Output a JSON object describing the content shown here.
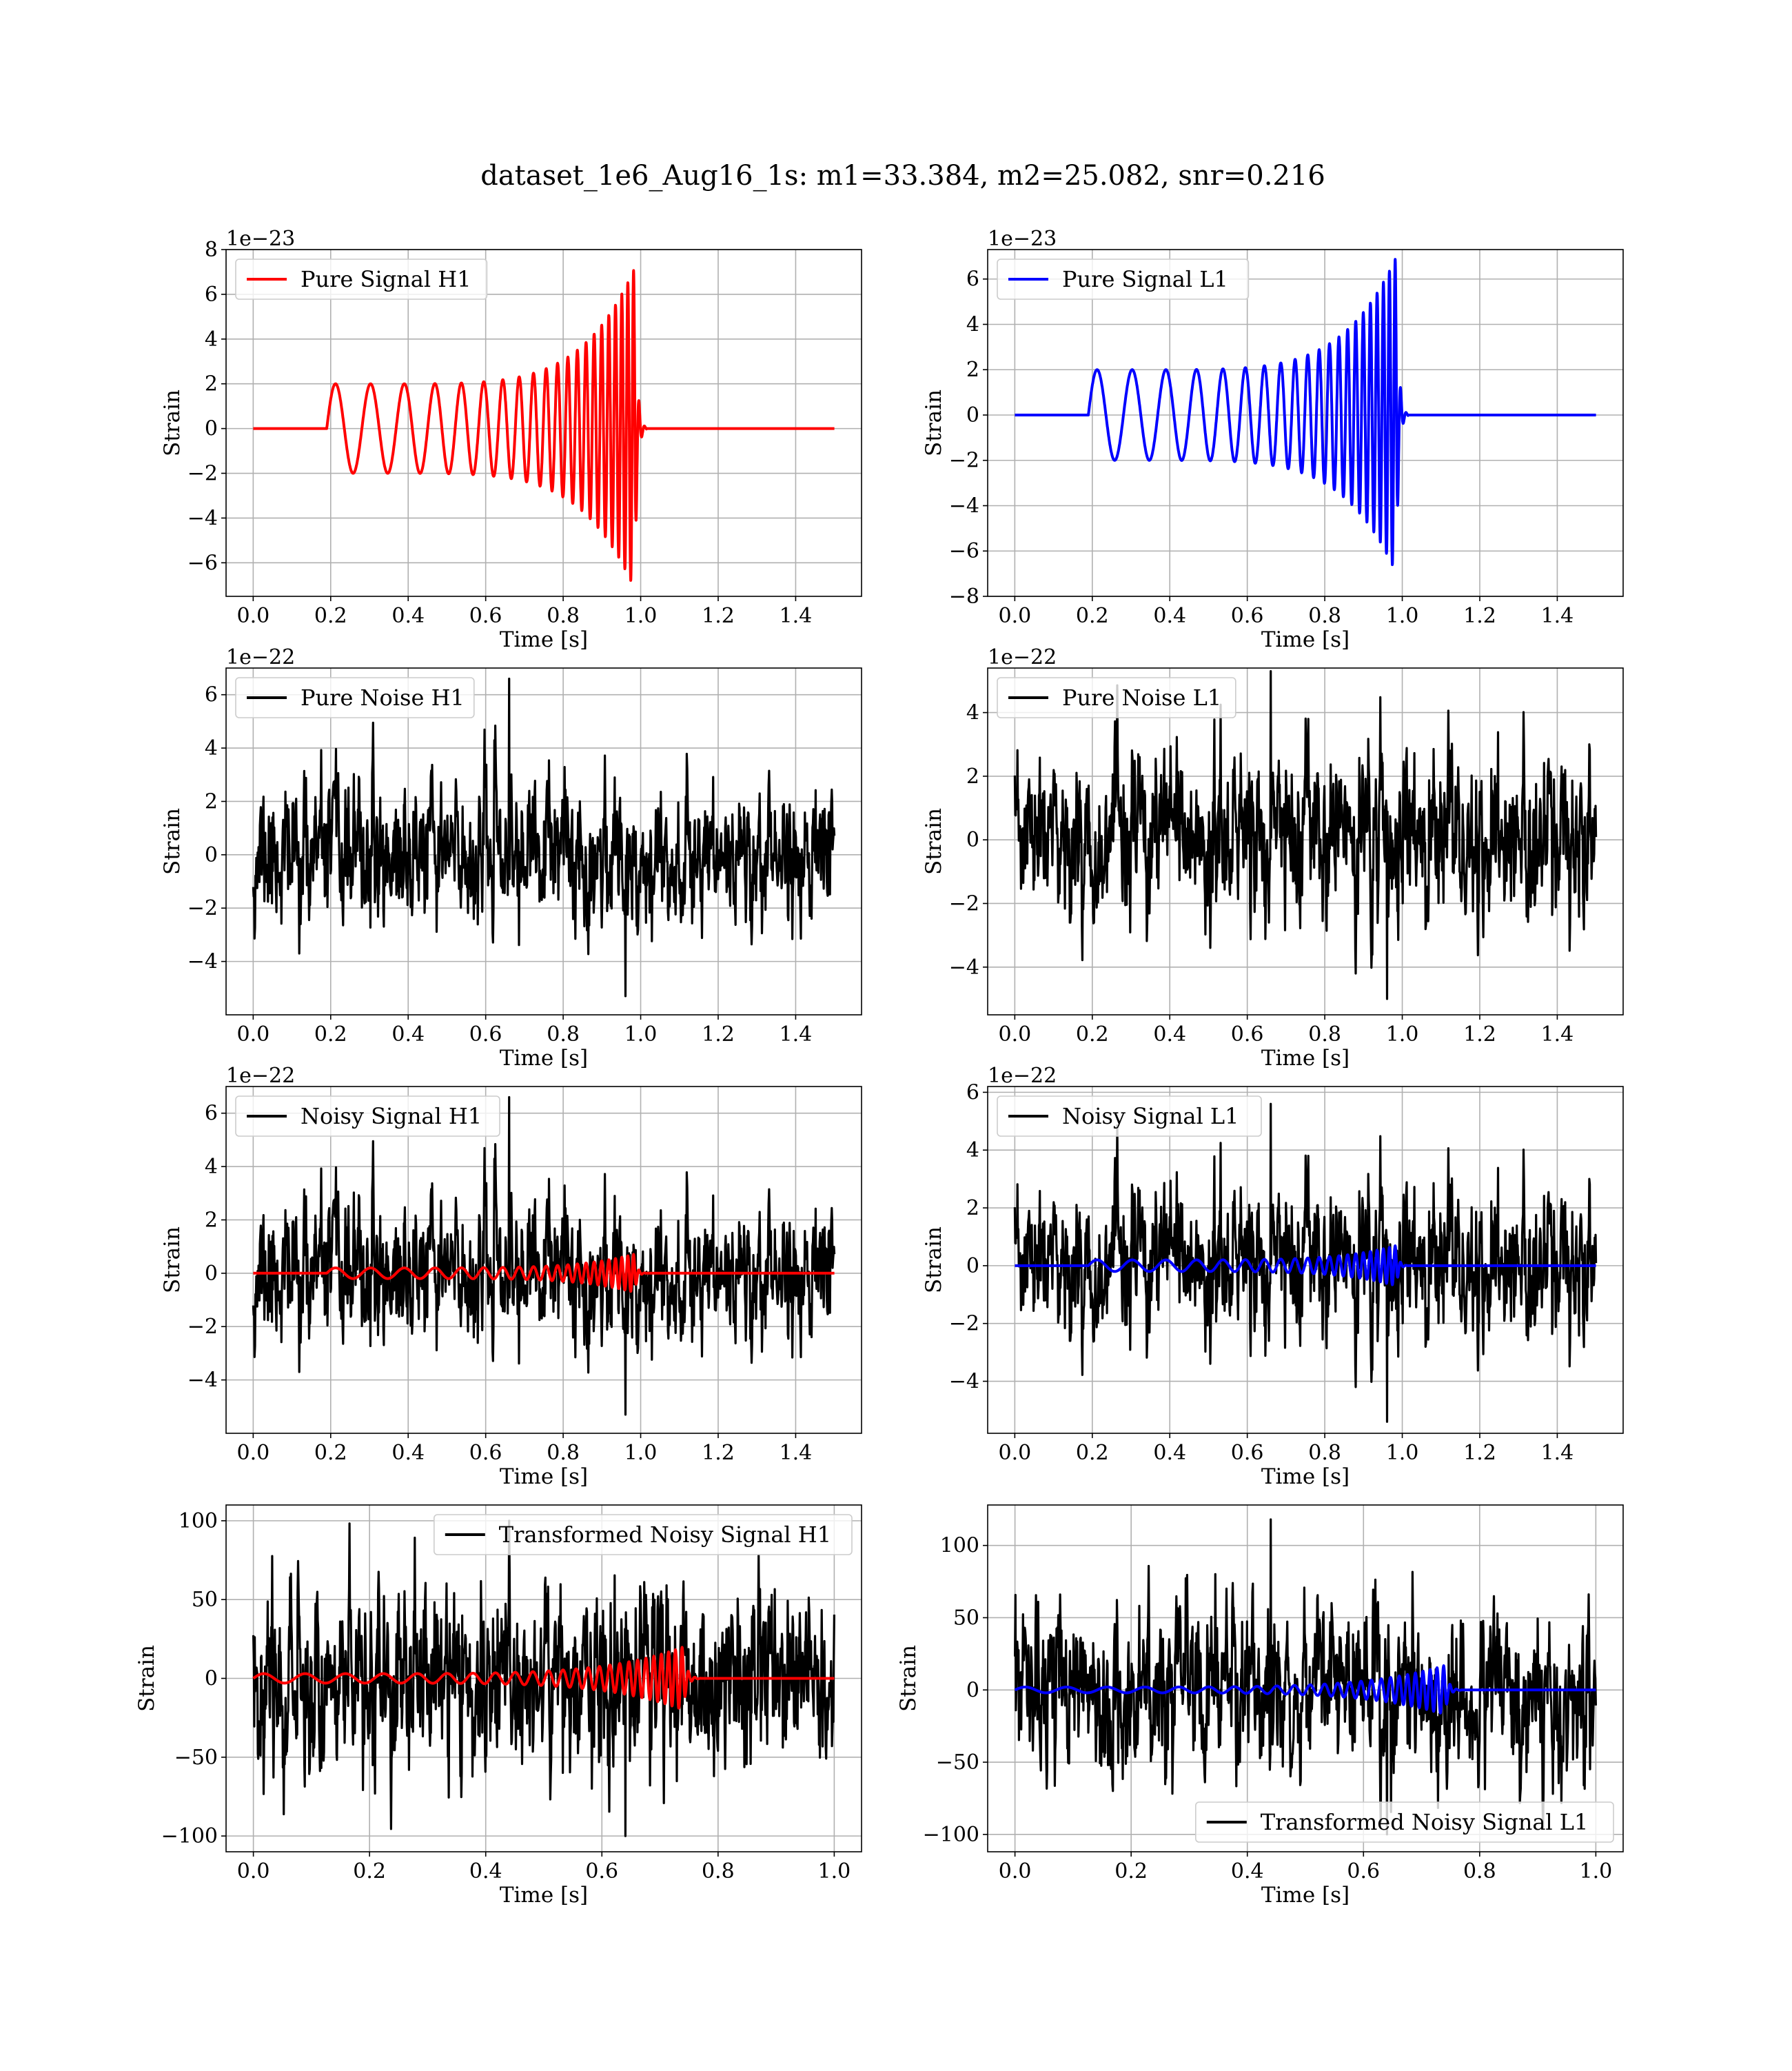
{
  "figure": {
    "suptitle": "dataset_1e6_Aug16_1s: m1=33.384, m2=25.082, snr=0.216",
    "colors": {
      "h1_signal": "#ff0000",
      "l1_signal": "#0000ff",
      "noise": "#000000",
      "grid": "#b0b0b0",
      "frame": "#000000"
    }
  },
  "chart_data": [
    {
      "type": "line",
      "panel": "Pure Signal H1",
      "xlabel": "Time [s]",
      "ylabel": "Strain",
      "multiplier": "1e−23",
      "xlim": [
        -0.07,
        1.57
      ],
      "ylim": [
        -7.5,
        8
      ],
      "xticks": [
        0,
        0.2,
        0.4,
        0.6,
        0.8,
        1.0,
        1.2,
        1.4
      ],
      "xtick_labels": [
        "0.0",
        "0.2",
        "0.4",
        "0.6",
        "0.8",
        "1.0",
        "1.2",
        "1.4"
      ],
      "yticks": [
        -6,
        -4,
        -2,
        0,
        2,
        4,
        6,
        8
      ],
      "ytick_labels": [
        "−6",
        "−4",
        "−2",
        "0",
        "2",
        "4",
        "6",
        "8"
      ],
      "grid": true,
      "legend_loc": "upper left",
      "series": [
        {
          "name": "Pure Signal H1",
          "color": "#ff0000",
          "kind": "chirp",
          "t_start": 0.19,
          "t_merge": 0.985,
          "x_end": 1.5,
          "amp_start": 2.0,
          "amp_peak": 7.2,
          "f_start": 11,
          "f_end": 70
        }
      ]
    },
    {
      "type": "line",
      "panel": "Pure Signal L1",
      "xlabel": "Time [s]",
      "ylabel": "Strain",
      "multiplier": "1e−23",
      "xlim": [
        -0.07,
        1.57
      ],
      "ylim": [
        -8,
        7.3
      ],
      "xticks": [
        0,
        0.2,
        0.4,
        0.6,
        0.8,
        1.0,
        1.2,
        1.4
      ],
      "xtick_labels": [
        "0.0",
        "0.2",
        "0.4",
        "0.6",
        "0.8",
        "1.0",
        "1.2",
        "1.4"
      ],
      "yticks": [
        -8,
        -6,
        -4,
        -2,
        0,
        2,
        4,
        6
      ],
      "ytick_labels": [
        "−8",
        "−6",
        "−4",
        "−2",
        "0",
        "2",
        "4",
        "6"
      ],
      "grid": true,
      "legend_loc": "upper left",
      "series": [
        {
          "name": "Pure Signal L1",
          "color": "#0000ff",
          "kind": "chirp",
          "t_start": 0.19,
          "t_merge": 0.985,
          "x_end": 1.5,
          "amp_start": 2.0,
          "amp_peak": 7.0,
          "f_start": 11,
          "f_end": 70
        }
      ]
    },
    {
      "type": "line",
      "panel": "Pure Noise H1",
      "xlabel": "Time [s]",
      "ylabel": "Strain",
      "multiplier": "1e−22",
      "xlim": [
        -0.07,
        1.57
      ],
      "ylim": [
        -6,
        7
      ],
      "xticks": [
        0,
        0.2,
        0.4,
        0.6,
        0.8,
        1.0,
        1.2,
        1.4
      ],
      "xtick_labels": [
        "0.0",
        "0.2",
        "0.4",
        "0.6",
        "0.8",
        "1.0",
        "1.2",
        "1.4"
      ],
      "yticks": [
        -4,
        -2,
        0,
        2,
        4,
        6
      ],
      "ytick_labels": [
        "−4",
        "−2",
        "0",
        "2",
        "4",
        "6"
      ],
      "grid": true,
      "legend_loc": "upper left",
      "series": [
        {
          "name": "Pure Noise H1",
          "color": "#000000",
          "kind": "noise",
          "x_end": 1.5,
          "n": 1300,
          "sigma": 1.25,
          "max": 6.6,
          "min": -5.3,
          "seed": 11
        }
      ]
    },
    {
      "type": "line",
      "panel": "Pure Noise L1",
      "xlabel": "Time [s]",
      "ylabel": "Strain",
      "multiplier": "1e−22",
      "xlim": [
        -0.07,
        1.57
      ],
      "ylim": [
        -5.5,
        5.4
      ],
      "xticks": [
        0,
        0.2,
        0.4,
        0.6,
        0.8,
        1.0,
        1.2,
        1.4
      ],
      "xtick_labels": [
        "0.0",
        "0.2",
        "0.4",
        "0.6",
        "0.8",
        "1.0",
        "1.2",
        "1.4"
      ],
      "yticks": [
        -4,
        -2,
        0,
        2,
        4
      ],
      "ytick_labels": [
        "−4",
        "−2",
        "0",
        "2",
        "4"
      ],
      "grid": true,
      "legend_loc": "upper left",
      "series": [
        {
          "name": "Pure Noise L1",
          "color": "#000000",
          "kind": "noise",
          "x_end": 1.5,
          "n": 1300,
          "sigma": 1.2,
          "max": 5.3,
          "min": -5.0,
          "seed": 23
        }
      ]
    },
    {
      "type": "line",
      "panel": "Noisy Signal H1",
      "xlabel": "Time [s]",
      "ylabel": "Strain",
      "multiplier": "1e−22",
      "xlim": [
        -0.07,
        1.57
      ],
      "ylim": [
        -6,
        7
      ],
      "xticks": [
        0,
        0.2,
        0.4,
        0.6,
        0.8,
        1.0,
        1.2,
        1.4
      ],
      "xtick_labels": [
        "0.0",
        "0.2",
        "0.4",
        "0.6",
        "0.8",
        "1.0",
        "1.2",
        "1.4"
      ],
      "yticks": [
        -4,
        -2,
        0,
        2,
        4,
        6
      ],
      "ytick_labels": [
        "−4",
        "−2",
        "0",
        "2",
        "4",
        "6"
      ],
      "grid": true,
      "legend_loc": "upper left",
      "series": [
        {
          "name": "Noisy Signal H1",
          "color": "#000000",
          "kind": "noise",
          "x_end": 1.5,
          "n": 1300,
          "sigma": 1.25,
          "max": 6.6,
          "min": -5.3,
          "seed": 11
        },
        {
          "name": "",
          "color": "#ff0000",
          "kind": "chirp",
          "t_start": 0.19,
          "t_merge": 0.985,
          "x_end": 1.5,
          "amp_start": 0.2,
          "amp_peak": 0.72,
          "f_start": 11,
          "f_end": 70
        }
      ]
    },
    {
      "type": "line",
      "panel": "Noisy Signal L1",
      "xlabel": "Time [s]",
      "ylabel": "Strain",
      "multiplier": "1e−22",
      "xlim": [
        -0.07,
        1.57
      ],
      "ylim": [
        -5.8,
        6.2
      ],
      "xticks": [
        0,
        0.2,
        0.4,
        0.6,
        0.8,
        1.0,
        1.2,
        1.4
      ],
      "xtick_labels": [
        "0.0",
        "0.2",
        "0.4",
        "0.6",
        "0.8",
        "1.0",
        "1.2",
        "1.4"
      ],
      "yticks": [
        -4,
        -2,
        0,
        2,
        4,
        6
      ],
      "ytick_labels": [
        "−4",
        "−2",
        "0",
        "2",
        "4",
        "6"
      ],
      "grid": true,
      "legend_loc": "upper left",
      "series": [
        {
          "name": "Noisy Signal L1",
          "color": "#000000",
          "kind": "noise",
          "x_end": 1.5,
          "n": 1300,
          "sigma": 1.2,
          "max": 5.6,
          "min": -5.4,
          "seed": 23
        },
        {
          "name": "",
          "color": "#0000ff",
          "kind": "chirp",
          "t_start": 0.19,
          "t_merge": 0.985,
          "x_end": 1.5,
          "amp_start": 0.2,
          "amp_peak": 0.7,
          "f_start": 11,
          "f_end": 70
        }
      ]
    },
    {
      "type": "line",
      "panel": "Transformed Noisy Signal H1",
      "xlabel": "Time [s]",
      "ylabel": "Strain",
      "multiplier": "",
      "xlim": [
        -0.047,
        1.047
      ],
      "ylim": [
        -110,
        110
      ],
      "xticks": [
        0,
        0.2,
        0.4,
        0.6,
        0.8,
        1.0
      ],
      "xtick_labels": [
        "0.0",
        "0.2",
        "0.4",
        "0.6",
        "0.8",
        "1.0"
      ],
      "yticks": [
        -100,
        -50,
        0,
        50,
        100
      ],
      "ytick_labels": [
        "−100",
        "−50",
        "0",
        "50",
        "100"
      ],
      "grid": true,
      "legend_loc": "upper right",
      "series": [
        {
          "name": "Transformed Noisy Signal H1",
          "color": "#000000",
          "kind": "noise",
          "x_end": 1.0,
          "n": 1300,
          "sigma": 28,
          "max": 100,
          "min": -100,
          "seed": 37
        },
        {
          "name": "",
          "color": "#ff0000",
          "kind": "chirp",
          "t_start": 0.0,
          "t_merge": 0.74,
          "x_end": 1.0,
          "amp_start": 3.0,
          "amp_peak": 20,
          "f_start": 14,
          "f_end": 90
        }
      ]
    },
    {
      "type": "line",
      "panel": "Transformed Noisy Signal L1",
      "xlabel": "Time [s]",
      "ylabel": "Strain",
      "multiplier": "",
      "xlim": [
        -0.047,
        1.047
      ],
      "ylim": [
        -112,
        128
      ],
      "xticks": [
        0,
        0.2,
        0.4,
        0.6,
        0.8,
        1.0
      ],
      "xtick_labels": [
        "0.0",
        "0.2",
        "0.4",
        "0.6",
        "0.8",
        "1.0"
      ],
      "yticks": [
        -100,
        -50,
        0,
        50,
        100
      ],
      "ytick_labels": [
        "−100",
        "−50",
        "0",
        "50",
        "100"
      ],
      "grid": true,
      "legend_loc": "lower right",
      "series": [
        {
          "name": "Transformed Noisy Signal L1",
          "color": "#000000",
          "kind": "noise",
          "x_end": 1.0,
          "n": 1300,
          "sigma": 27,
          "max": 118,
          "min": -100,
          "seed": 53
        },
        {
          "name": "",
          "color": "#0000ff",
          "kind": "chirp",
          "t_start": 0.0,
          "t_merge": 0.74,
          "x_end": 1.0,
          "amp_start": 2.0,
          "amp_peak": 17,
          "f_start": 14,
          "f_end": 90
        }
      ]
    }
  ]
}
